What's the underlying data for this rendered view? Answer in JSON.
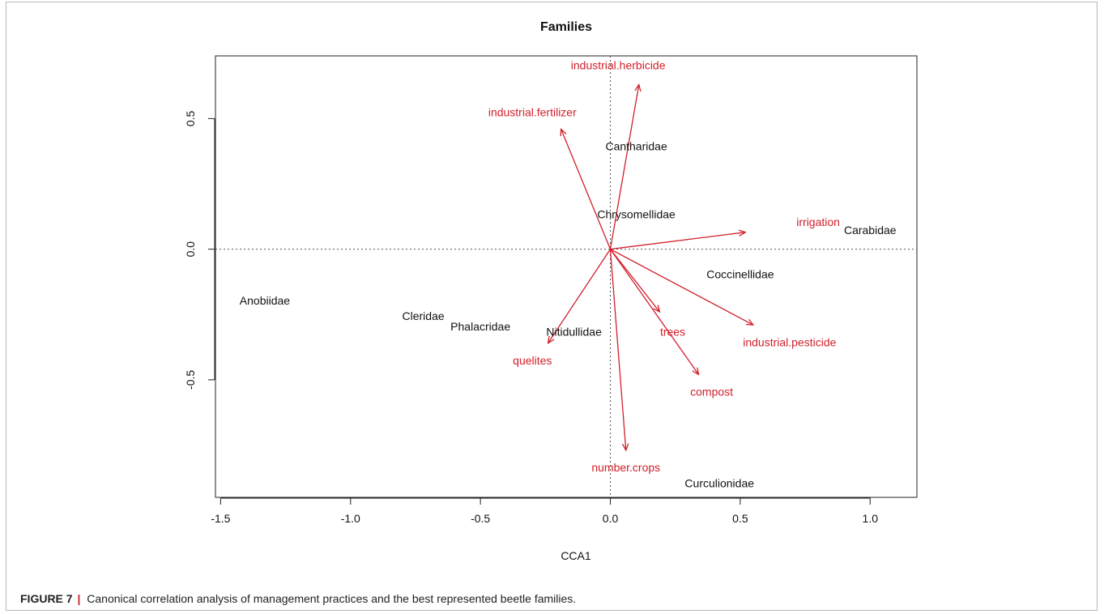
{
  "chart_data": {
    "type": "scatter",
    "subtype": "cca-biplot",
    "title": "Families",
    "xlabel": "CCA1",
    "ylabel": "",
    "xlim": [
      -1.52,
      1.18
    ],
    "ylim": [
      -0.95,
      0.74
    ],
    "xticks": [
      -1.5,
      -1.0,
      -0.5,
      0.0,
      0.5,
      1.0
    ],
    "xtick_labels": [
      "-1.5",
      "-1.0",
      "-0.5",
      "0.0",
      "0.5",
      "1.0"
    ],
    "yticks": [
      -0.5,
      0.0,
      0.5
    ],
    "ytick_labels": [
      "-0.5",
      "0.0",
      "0.5"
    ],
    "grid": false,
    "reference_lines": {
      "x0": true,
      "y0": true,
      "style": "dotted"
    },
    "colors": {
      "species": "#111111",
      "arrows": "#d21f2a"
    },
    "species": [
      {
        "label": "Cantharidae",
        "x": 0.1,
        "y": 0.39
      },
      {
        "label": "Chrysomellidae",
        "x": 0.1,
        "y": 0.13
      },
      {
        "label": "Carabidae",
        "x": 1.0,
        "y": 0.07
      },
      {
        "label": "Coccinellidae",
        "x": 0.5,
        "y": -0.1
      },
      {
        "label": "Anobiidae",
        "x": -1.33,
        "y": -0.2
      },
      {
        "label": "Cleridae",
        "x": -0.72,
        "y": -0.26
      },
      {
        "label": "Phalacridae",
        "x": -0.5,
        "y": -0.3
      },
      {
        "label": "Nitidullidae",
        "x": -0.14,
        "y": -0.32
      },
      {
        "label": "Curculionidae",
        "x": 0.42,
        "y": -0.9
      }
    ],
    "arrows": [
      {
        "label": "industrial.herbicide",
        "x": 0.11,
        "y": 0.63,
        "label_x": 0.03,
        "label_y": 0.7
      },
      {
        "label": "industrial.fertilizer",
        "x": -0.19,
        "y": 0.46,
        "label_x": -0.3,
        "label_y": 0.52
      },
      {
        "label": "irrigation",
        "x": 0.52,
        "y": 0.065,
        "label_x": 0.8,
        "label_y": 0.1
      },
      {
        "label": "industrial.pesticide",
        "x": 0.55,
        "y": -0.29,
        "label_x": 0.69,
        "label_y": -0.36
      },
      {
        "label": "trees",
        "x": 0.19,
        "y": -0.24,
        "label_x": 0.24,
        "label_y": -0.32
      },
      {
        "label": "compost",
        "x": 0.34,
        "y": -0.48,
        "label_x": 0.39,
        "label_y": -0.55
      },
      {
        "label": "quelites",
        "x": -0.24,
        "y": -0.36,
        "label_x": -0.3,
        "label_y": -0.43
      },
      {
        "label": "number.crops",
        "x": 0.06,
        "y": -0.77,
        "label_x": 0.06,
        "label_y": -0.84
      }
    ]
  },
  "caption": {
    "label": "FIGURE 7",
    "separator": "|",
    "text": "Canonical correlation analysis of management practices and the best represented beetle families."
  }
}
